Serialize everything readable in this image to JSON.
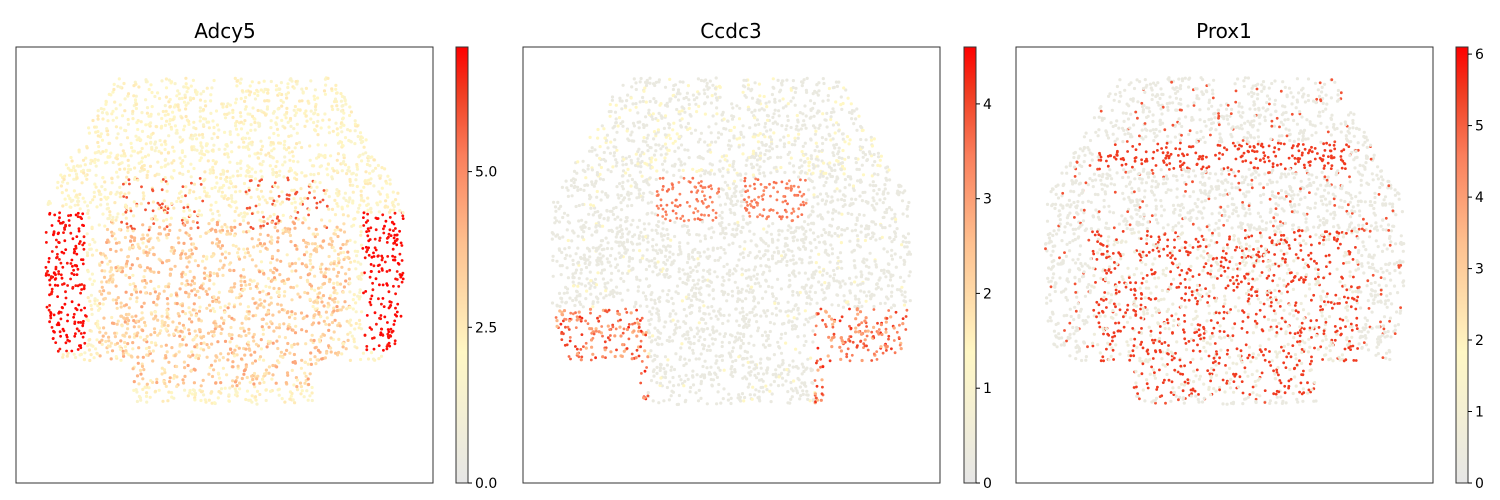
{
  "chart_data": [
    {
      "type": "scatter",
      "title": "Adcy5",
      "colorbar": {
        "min": 0.0,
        "max": 7.0,
        "ticks": [
          0.0,
          2.5,
          5.0
        ],
        "tick_labels": [
          "0.0",
          "2.5",
          "5.0"
        ]
      },
      "pattern": "striatum"
    },
    {
      "type": "scatter",
      "title": "Ccdc3",
      "colorbar": {
        "min": 0,
        "max": 4.6,
        "ticks": [
          0,
          1,
          2,
          3,
          4
        ],
        "tick_labels": [
          "0",
          "1",
          "2",
          "3",
          "4"
        ]
      },
      "pattern": "cortex-ventral"
    },
    {
      "type": "scatter",
      "title": "Prox1",
      "colorbar": {
        "min": 0,
        "max": 6.1,
        "ticks": [
          0,
          1,
          2,
          3,
          4,
          5,
          6
        ],
        "tick_labels": [
          "0",
          "1",
          "2",
          "3",
          "4",
          "5",
          "6"
        ]
      },
      "pattern": "thalamus-wide"
    }
  ],
  "colormap": [
    "#e6e6e6",
    "#fff7c4",
    "#fec08f",
    "#fa7f5c",
    "#f03b20",
    "#ff0000"
  ],
  "grid": false,
  "legend": "none"
}
